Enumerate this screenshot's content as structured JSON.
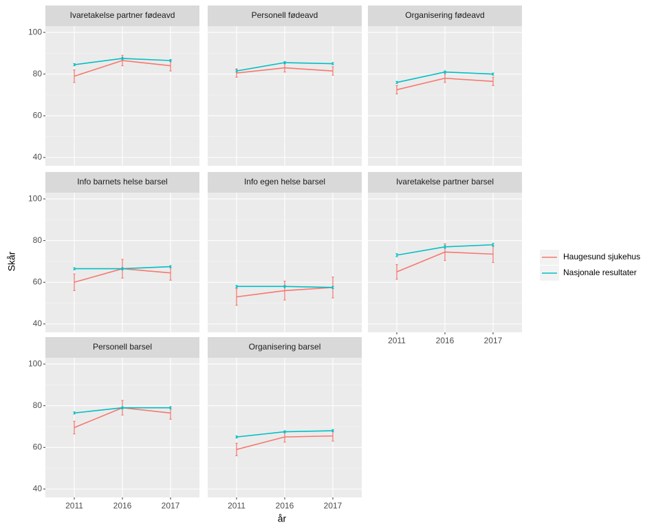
{
  "chart_data": {
    "type": "line",
    "xlabel": "år",
    "ylabel": "Skår",
    "categories": [
      "2011",
      "2016",
      "2017"
    ],
    "ylim": [
      36,
      103
    ],
    "yticks": [
      40,
      60,
      80,
      100
    ],
    "grid": true,
    "legend": "right",
    "series": [
      {
        "name": "Haugesund sjukehus",
        "color": "#F8766D"
      },
      {
        "name": "Nasjonale resultater",
        "color": "#00BFC4"
      }
    ],
    "facets": [
      {
        "title": "Ivaretakelse partner fødeavd",
        "series": [
          {
            "values": [
              79,
              86.5,
              84
            ],
            "errors": [
              3,
              2.5,
              2.5
            ]
          },
          {
            "values": [
              84.5,
              87.5,
              86.5
            ],
            "errors": [
              0.5,
              0.5,
              0.5
            ]
          }
        ]
      },
      {
        "title": "Personell fødeavd",
        "series": [
          {
            "values": [
              80.5,
              83,
              81.5
            ],
            "errors": [
              2,
              2,
              2
            ]
          },
          {
            "values": [
              81.5,
              85.5,
              85
            ],
            "errors": [
              0.5,
              0.5,
              0.5
            ]
          }
        ]
      },
      {
        "title": "Organisering fødeavd",
        "series": [
          {
            "values": [
              72.5,
              78,
              76.5
            ],
            "errors": [
              2,
              2,
              2
            ]
          },
          {
            "values": [
              76,
              81,
              80
            ],
            "errors": [
              0.5,
              0.5,
              0.5
            ]
          }
        ]
      },
      {
        "title": "Info barnets helse barsel",
        "series": [
          {
            "values": [
              60,
              66.5,
              64.5
            ],
            "errors": [
              4,
              4.5,
              3.5
            ]
          },
          {
            "values": [
              66.5,
              66.5,
              67.5
            ],
            "errors": [
              0.5,
              0.5,
              0.5
            ]
          }
        ]
      },
      {
        "title": "Info egen helse barsel",
        "series": [
          {
            "values": [
              53,
              56,
              57.5
            ],
            "errors": [
              4,
              4.5,
              5
            ]
          },
          {
            "values": [
              58,
              58,
              57.5
            ],
            "errors": [
              0.5,
              0.5,
              0.5
            ]
          }
        ]
      },
      {
        "title": "Ivaretakelse partner barsel",
        "series": [
          {
            "values": [
              65,
              74.5,
              73.5
            ],
            "errors": [
              3.5,
              4,
              4
            ]
          },
          {
            "values": [
              73,
              77,
              78
            ],
            "errors": [
              0.7,
              0.7,
              0.7
            ]
          }
        ]
      },
      {
        "title": "Personell barsel",
        "series": [
          {
            "values": [
              69.5,
              79,
              76.5
            ],
            "errors": [
              3,
              3.5,
              3
            ]
          },
          {
            "values": [
              76.5,
              79,
              79
            ],
            "errors": [
              0.5,
              0.5,
              0.5
            ]
          }
        ]
      },
      {
        "title": "Organisering barsel",
        "series": [
          {
            "values": [
              59,
              65,
              65.5
            ],
            "errors": [
              3,
              2.5,
              2.5
            ]
          },
          {
            "values": [
              65,
              67.5,
              68
            ],
            "errors": [
              0.5,
              0.5,
              0.5
            ]
          }
        ]
      }
    ]
  }
}
